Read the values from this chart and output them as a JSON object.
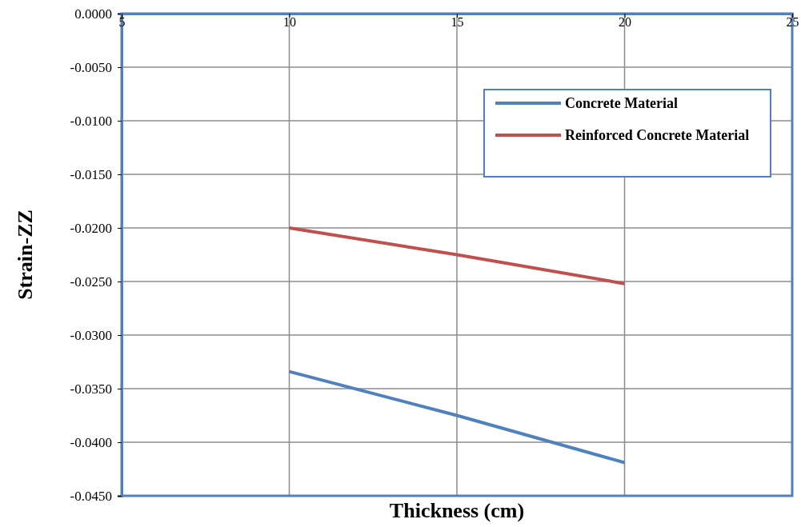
{
  "chart_data": {
    "type": "line",
    "xlabel": "Thickness  (cm)",
    "ylabel": "Strain-ZZ",
    "xlim": [
      5,
      25
    ],
    "xticks": [
      5,
      10,
      15,
      20,
      25
    ],
    "ylim": [
      -0.045,
      0
    ],
    "yticks": [
      {
        "value": 0,
        "label": "0.0000"
      },
      {
        "value": -0.005,
        "label": "-0.0050"
      },
      {
        "value": -0.01,
        "label": "-0.0100"
      },
      {
        "value": -0.015,
        "label": "-0.0150"
      },
      {
        "value": -0.02,
        "label": "-0.0200"
      },
      {
        "value": -0.025,
        "label": "-0.0250"
      },
      {
        "value": -0.03,
        "label": "-0.0300"
      },
      {
        "value": -0.035,
        "label": "-0.0350"
      },
      {
        "value": -0.04,
        "label": "-0.0400"
      },
      {
        "value": -0.045,
        "label": "-0.0450"
      }
    ],
    "grid": true,
    "legend": "top right",
    "marker": "none",
    "line_style": "solid",
    "series": [
      {
        "name": "Concrete Material",
        "color": "#4f81bd",
        "x": [
          10,
          15,
          20
        ],
        "values": [
          -0.0334,
          -0.0375,
          -0.0419
        ]
      },
      {
        "name": "Reinforced Concrete Material",
        "color": "#c0504d",
        "x": [
          10,
          15,
          20
        ],
        "values": [
          -0.02,
          -0.0225,
          -0.0252
        ]
      }
    ]
  }
}
